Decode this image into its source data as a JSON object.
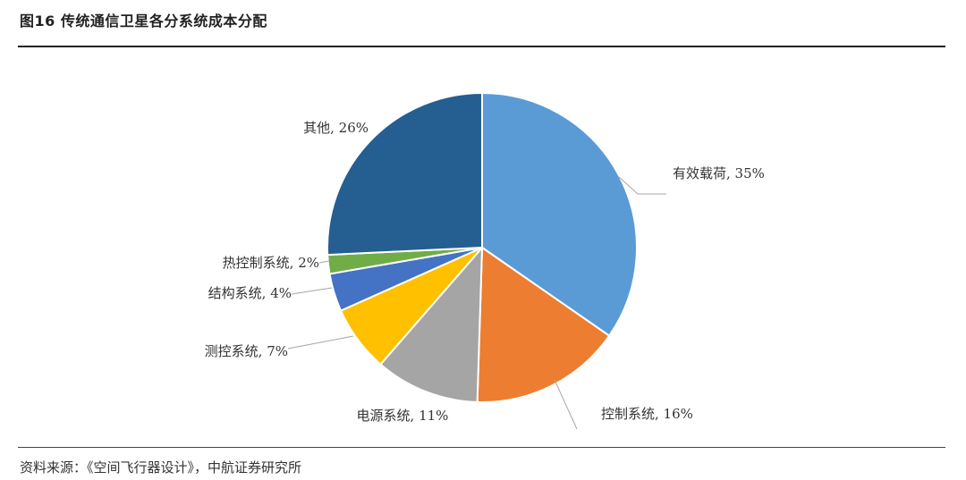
{
  "header": {
    "title": "图16 传统通信卫星各分系统成本分配"
  },
  "footer": {
    "source": "资料来源：《空间飞行器设计》，中航证券研究所"
  },
  "chart_data": {
    "type": "pie",
    "title": "",
    "slices": [
      {
        "label": "有效载荷",
        "value": 35,
        "color": "#5B9BD5",
        "display": "有效载荷, 35%"
      },
      {
        "label": "控制系统",
        "value": 16,
        "color": "#ED7D31",
        "display": "控制系统, 16%"
      },
      {
        "label": "电源系统",
        "value": 11,
        "color": "#A5A5A5",
        "display": "电源系统, 11%"
      },
      {
        "label": "测控系统",
        "value": 7,
        "color": "#FFC000",
        "display": "测控系统, 7%"
      },
      {
        "label": "结构系统",
        "value": 4,
        "color": "#4472C4",
        "display": "结构系统, 4%"
      },
      {
        "label": "热控制系统",
        "value": 2,
        "color": "#70AD47",
        "display": "热控制系统, 2%"
      },
      {
        "label": "其他",
        "value": 26,
        "color": "#255E91",
        "display": "其他, 26%"
      }
    ]
  }
}
